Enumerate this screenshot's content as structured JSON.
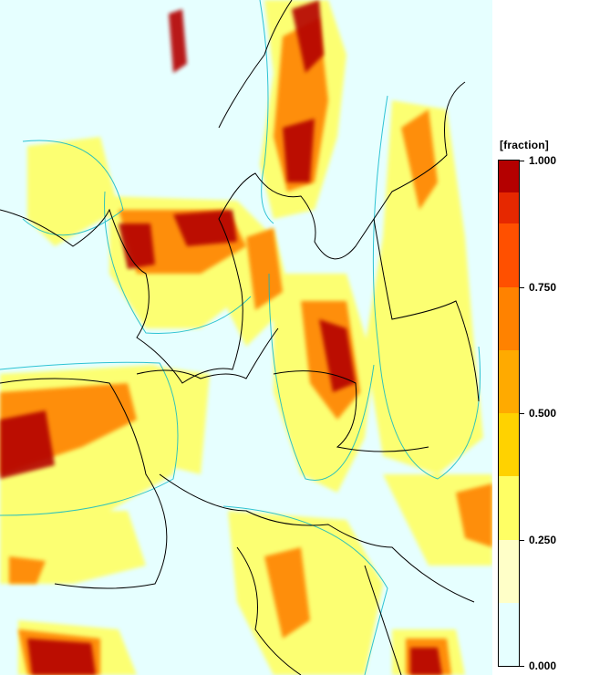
{
  "legend": {
    "unit": "[fraction]",
    "ticks": [
      {
        "label": "1.000",
        "value": 1.0
      },
      {
        "label": "0.750",
        "value": 0.75
      },
      {
        "label": "0.500",
        "value": 0.5
      },
      {
        "label": "0.250",
        "value": 0.25
      },
      {
        "label": "0.000",
        "value": 0.0
      }
    ],
    "color_steps": [
      {
        "from": 0.0,
        "to": 0.125,
        "color": "#e6ffff"
      },
      {
        "from": 0.125,
        "to": 0.25,
        "color": "#ffffc8"
      },
      {
        "from": 0.25,
        "to": 0.375,
        "color": "#ffff64"
      },
      {
        "from": 0.375,
        "to": 0.5,
        "color": "#ffd200"
      },
      {
        "from": 0.5,
        "to": 0.625,
        "color": "#ffaa00"
      },
      {
        "from": 0.625,
        "to": 0.75,
        "color": "#ff8200"
      },
      {
        "from": 0.75,
        "to": 0.875,
        "color": "#ff5000"
      },
      {
        "from": 0.875,
        "to": 0.9375,
        "color": "#e62800"
      },
      {
        "from": 0.9375,
        "to": 1.0,
        "color": "#b40000"
      }
    ]
  },
  "colors": {
    "background": "#e6ffff",
    "coastline": "#000000",
    "contour": "#00b4c8"
  }
}
